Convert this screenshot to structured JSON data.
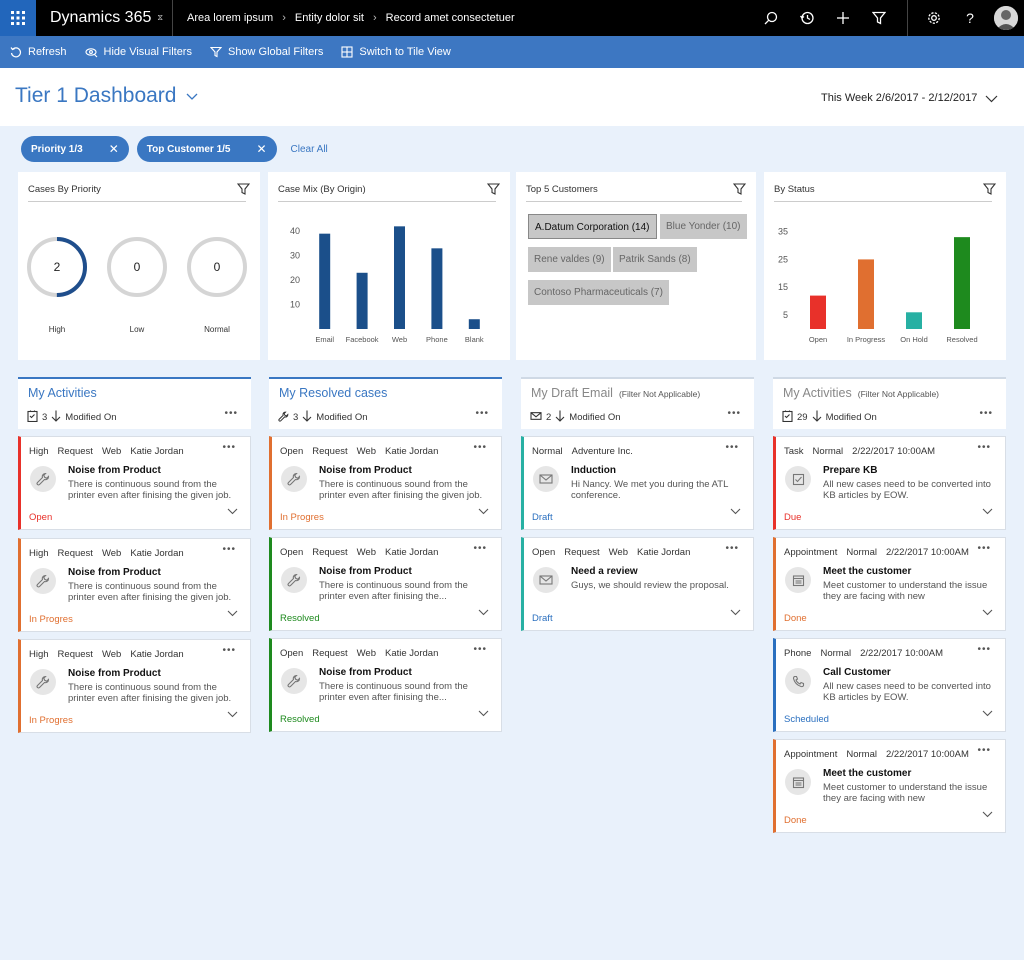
{
  "app": {
    "brand": "Dynamics 365"
  },
  "breadcrumb": [
    "Area lorem ipsum",
    "Entity dolor sit",
    "Record amet consectetuer"
  ],
  "nav_icons": [
    "search-icon",
    "history-icon",
    "add-icon",
    "filter-icon",
    "settings-icon",
    "help-icon"
  ],
  "commands": {
    "refresh": "Refresh",
    "hide_visual_filters": "Hide Visual Filters",
    "show_global_filters": "Show Global Filters",
    "switch_tile_view": "Switch to Tile View"
  },
  "dashboard": {
    "title": "Tier 1 Dashboard",
    "date_range": "This Week 2/6/2017 - 2/12/2017"
  },
  "filters": {
    "pills": [
      "Priority 1/3",
      "Top Customer 1/5"
    ],
    "clear_all": "Clear All"
  },
  "cards": {
    "priority": {
      "title": "Cases By Priority",
      "rings": [
        {
          "value": "2",
          "label": "High",
          "fill": 0.5
        },
        {
          "value": "0",
          "label": "Low",
          "fill": 0
        },
        {
          "value": "0",
          "label": "Normal",
          "fill": 0
        }
      ],
      "accent": "#1f4e8c"
    },
    "origin": {
      "title": "Case Mix (By Origin)"
    },
    "customers": {
      "title": "Top 5 Customers",
      "chips": [
        {
          "label": "A.Datum Corporation (14)",
          "selected": true
        },
        {
          "label": "Blue Yonder (10)",
          "selected": false
        },
        {
          "label": "Rene valdes (9)",
          "selected": false
        },
        {
          "label": "Patrik Sands (8)",
          "selected": false
        },
        {
          "label": "Contoso Pharmaceuticals (7)",
          "selected": false
        }
      ]
    },
    "status": {
      "title": "By Status"
    }
  },
  "chart_data": [
    {
      "type": "bar",
      "title": "Case Mix (By Origin)",
      "categories": [
        "Email",
        "Facebook",
        "Web",
        "Phone",
        "Blank"
      ],
      "values": [
        39,
        23,
        42,
        33,
        4
      ],
      "yticks": [
        10,
        20,
        30,
        40
      ],
      "ylim": [
        0,
        45
      ],
      "colors": [
        "#1b4f8a"
      ]
    },
    {
      "type": "bar",
      "title": "By Status",
      "categories": [
        "Open",
        "In Progress",
        "On Hold",
        "Resolved"
      ],
      "values": [
        12,
        25,
        6,
        33
      ],
      "yticks": [
        5,
        15,
        25,
        35
      ],
      "ylim": [
        0,
        37
      ],
      "colors": [
        "#e8312a",
        "#e06f30",
        "#27b0a3",
        "#1e8a1e"
      ]
    }
  ],
  "columns": [
    {
      "title": "My Activities",
      "note": "",
      "count": "3",
      "sort": "Modified On",
      "icon": "task-list-icon",
      "active": true,
      "muted": false,
      "tiles": [
        {
          "meta": [
            "High",
            "Request",
            "Web",
            "Katie Jordan"
          ],
          "title": "Noise from Product",
          "body": "There is continuous sound from the printer even after finising the given job.",
          "status": "Open",
          "color": "#e8312a",
          "status_color": "#e8312a",
          "icon": "wrench-icon"
        },
        {
          "meta": [
            "High",
            "Request",
            "Web",
            "Katie Jordan"
          ],
          "title": "Noise from Product",
          "body": "There is continuous sound from the printer even after finising the given job.",
          "status": "In Progres",
          "color": "#e06f30",
          "status_color": "#e06f30",
          "icon": "wrench-icon"
        },
        {
          "meta": [
            "High",
            "Request",
            "Web",
            "Katie Jordan"
          ],
          "title": "Noise from Product",
          "body": "There is continuous sound from the printer even after finising the given job.",
          "status": "In Progres",
          "color": "#e06f30",
          "status_color": "#e06f30",
          "icon": "wrench-icon"
        }
      ]
    },
    {
      "title": "My Resolved cases",
      "note": "",
      "count": "3",
      "sort": "Modified On",
      "icon": "wrench-icon",
      "active": true,
      "muted": false,
      "tiles": [
        {
          "meta": [
            "Open",
            "Request",
            "Web",
            "Katie Jordan"
          ],
          "title": "Noise from Product",
          "body": "There is continuous sound from the printer even after finising the given job.",
          "status": "In Progres",
          "color": "#e06f30",
          "status_color": "#e06f30",
          "icon": "wrench-icon"
        },
        {
          "meta": [
            "Open",
            "Request",
            "Web",
            "Katie Jordan"
          ],
          "title": "Noise from Product",
          "body": "There is continuous sound from the printer even after finising the...",
          "status": "Resolved",
          "color": "#1e8a1e",
          "status_color": "#1e8a1e",
          "icon": "wrench-icon"
        },
        {
          "meta": [
            "Open",
            "Request",
            "Web",
            "Katie Jordan"
          ],
          "title": "Noise from Product",
          "body": "There is continuous sound from the printer even after finising the...",
          "status": "Resolved",
          "color": "#1e8a1e",
          "status_color": "#1e8a1e",
          "icon": "wrench-icon"
        }
      ]
    },
    {
      "title": "My Draft Email",
      "note": "(Filter Not Applicable)",
      "count": "2",
      "sort": "Modified On",
      "icon": "mail-icon",
      "active": false,
      "muted": true,
      "tiles": [
        {
          "meta": [
            "Normal",
            "Adventure Inc."
          ],
          "title": "Induction",
          "body": "Hi Nancy. We met you during the ATL conference.",
          "status": "Draft",
          "color": "#27b0a3",
          "status_color": "#2a6fbf",
          "icon": "mail-icon"
        },
        {
          "meta": [
            "Open",
            "Request",
            "Web",
            "Katie Jordan"
          ],
          "title": "Need a review",
          "body": "Guys, we should review the proposal.",
          "status": "Draft",
          "color": "#27b0a3",
          "status_color": "#2a6fbf",
          "icon": "mail-icon"
        }
      ]
    },
    {
      "title": "My Activities",
      "note": "(Filter Not Applicable)",
      "count": "29",
      "sort": "Modified On",
      "icon": "task-list-icon",
      "active": false,
      "muted": true,
      "tiles": [
        {
          "meta": [
            "Task",
            "Normal",
            "2/22/2017 10:00AM"
          ],
          "title": "Prepare KB",
          "body": "All new cases need to be converted into KB articles by EOW.",
          "status": "Due",
          "color": "#e8312a",
          "status_color": "#e8312a",
          "icon": "checkbox-icon"
        },
        {
          "meta": [
            "Appointment",
            "Normal",
            "2/22/2017 10:00AM"
          ],
          "title": "Meet the customer",
          "body": "Meet customer to understand the issue they are facing with new",
          "status": "Done",
          "color": "#e06f30",
          "status_color": "#e06f30",
          "icon": "calendar-icon"
        },
        {
          "meta": [
            "Phone",
            "Normal",
            "2/22/2017 10:00AM"
          ],
          "title": "Call Customer",
          "body": "All new cases need to be converted into KB articles by EOW.",
          "status": "Scheduled",
          "color": "#2a6fbf",
          "status_color": "#2a6fbf",
          "icon": "phone-icon"
        },
        {
          "meta": [
            "Appointment",
            "Normal",
            "2/22/2017 10:00AM"
          ],
          "title": "Meet the customer",
          "body": "Meet customer to understand the issue they are facing with new",
          "status": "Done",
          "color": "#e06f30",
          "status_color": "#e06f30",
          "icon": "calendar-icon"
        }
      ]
    }
  ]
}
